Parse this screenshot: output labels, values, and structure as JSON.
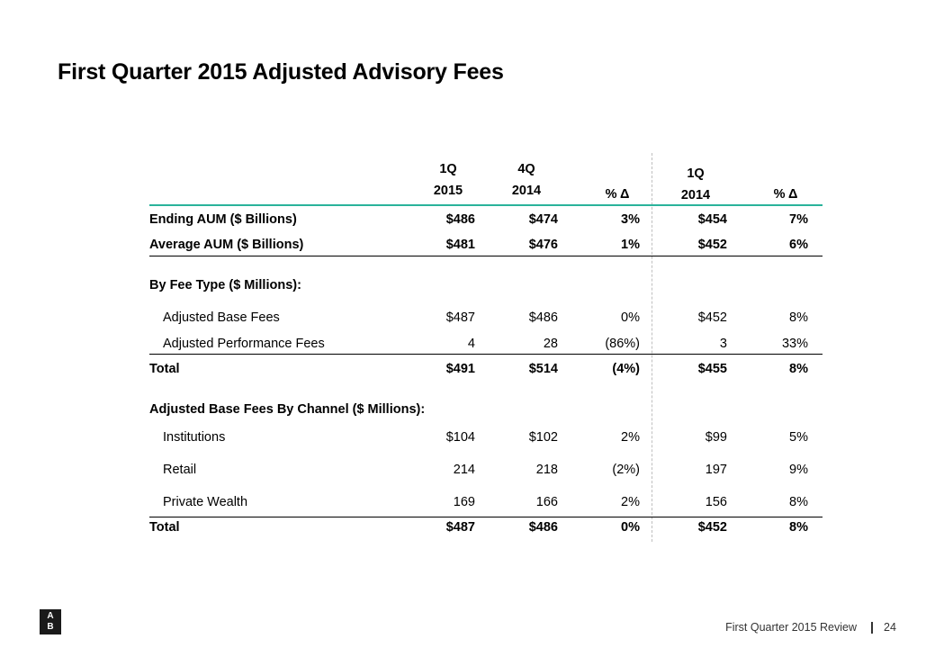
{
  "title": "First Quarter 2015 Adjusted Advisory Fees",
  "headers": {
    "col1": [
      "1Q",
      "2015"
    ],
    "col2": [
      "4Q",
      "2014"
    ],
    "col3": "% Δ",
    "col4": [
      "1Q",
      "2014"
    ],
    "col5": "% Δ"
  },
  "rows": {
    "ending_aum": {
      "label": "Ending AUM ($ Billions)",
      "v": [
        "$486",
        "$474",
        "3%",
        "$454",
        "7%"
      ]
    },
    "average_aum": {
      "label": "Average AUM ($ Billions)",
      "v": [
        "$481",
        "$476",
        "1%",
        "$452",
        "6%"
      ]
    },
    "fee_type_header": {
      "label": "By Fee Type ($ Millions):"
    },
    "adj_base_fees": {
      "label": "Adjusted Base Fees",
      "v": [
        "$487",
        "$486",
        "0%",
        "$452",
        "8%"
      ]
    },
    "adj_perf_fees": {
      "label": "Adjusted Performance Fees",
      "v": [
        "4",
        "28",
        "(86%)",
        "3",
        "33%"
      ]
    },
    "total_1": {
      "label": "Total",
      "v": [
        "$491",
        "$514",
        "(4%)",
        "$455",
        "8%"
      ]
    },
    "channel_header": {
      "label": "Adjusted Base Fees By Channel ($ Millions):"
    },
    "institutions": {
      "label": "Institutions",
      "v": [
        "$104",
        "$102",
        "2%",
        "$99",
        "5%"
      ]
    },
    "retail": {
      "label": "Retail",
      "v": [
        "214",
        "218",
        "(2%)",
        "197",
        "9%"
      ]
    },
    "private_wealth": {
      "label": "Private Wealth",
      "v": [
        "169",
        "166",
        "2%",
        "156",
        "8%"
      ]
    },
    "total_2": {
      "label": "Total",
      "v": [
        "$487",
        "$486",
        "0%",
        "$452",
        "8%"
      ]
    }
  },
  "footer": {
    "logo_line1": "A",
    "logo_line2": "B",
    "review": "First Quarter 2015 Review",
    "separator": "|",
    "page": "24"
  },
  "colors": {
    "accent_rule": "#2ab39b",
    "text": "#000000"
  }
}
